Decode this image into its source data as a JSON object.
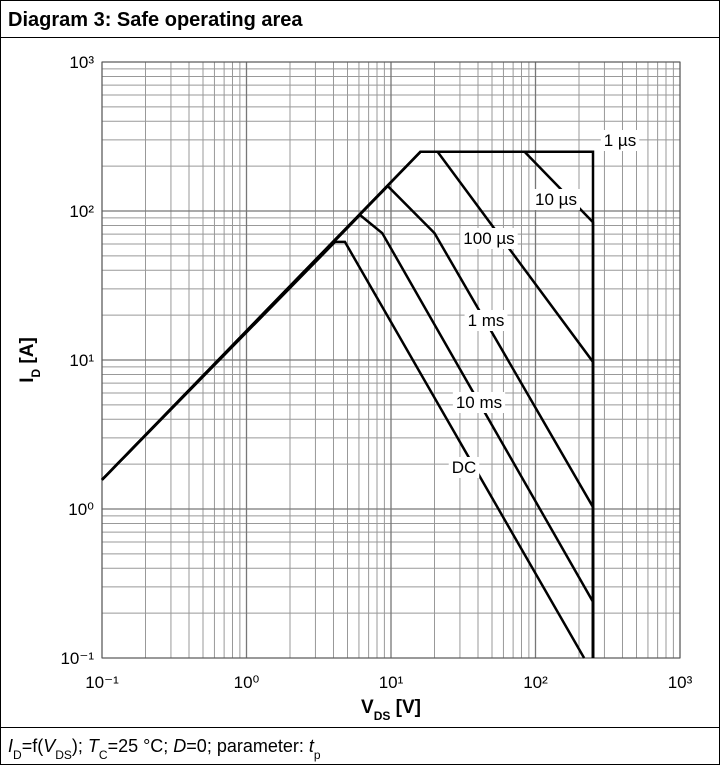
{
  "chart_data": {
    "type": "line",
    "title": "Diagram 3: Safe operating area",
    "xlabel": [
      "V",
      "DS",
      " [V]"
    ],
    "ylabel": [
      "I",
      "D",
      " [A]"
    ],
    "footer": [
      "I",
      "D",
      "=f(",
      "V",
      "DS",
      "); ",
      "T",
      "C",
      "=25 °C; ",
      "D",
      "=0; parameter: ",
      "t",
      "p"
    ],
    "xscale": "log",
    "yscale": "log",
    "grid": true,
    "minor_grid": true,
    "xlim": [
      0.1,
      1000
    ],
    "ylim": [
      0.1,
      1000
    ],
    "xticks": [
      {
        "value": 0.1,
        "label": "10⁻¹"
      },
      {
        "value": 1,
        "label": "10⁰"
      },
      {
        "value": 10,
        "label": "10¹"
      },
      {
        "value": 100,
        "label": "10²"
      },
      {
        "value": 1000,
        "label": "10³"
      }
    ],
    "yticks": [
      {
        "value": 0.1,
        "label": "10⁻¹"
      },
      {
        "value": 1,
        "label": "10⁰"
      },
      {
        "value": 10,
        "label": "10¹"
      },
      {
        "value": 100,
        "label": "10²"
      },
      {
        "value": 1000,
        "label": "10³"
      }
    ],
    "series": [
      {
        "name": "1 µs",
        "color": "#000000",
        "x": [
          0.1,
          16,
          250,
          250
        ],
        "values": [
          1.57,
          250,
          250,
          0.1
        ]
      },
      {
        "name": "10 µs",
        "color": "#000000",
        "x": [
          0.1,
          16,
          84,
          250,
          250
        ],
        "values": [
          1.57,
          250,
          250,
          84,
          0.1
        ]
      },
      {
        "name": "100 µs",
        "color": "#000000",
        "x": [
          0.1,
          16,
          21,
          250,
          250
        ],
        "values": [
          1.57,
          250,
          250,
          9.7,
          0.1
        ]
      },
      {
        "name": "1 ms",
        "color": "#000000",
        "x": [
          0.1,
          9.5,
          20,
          250,
          250
        ],
        "values": [
          1.57,
          147,
          71,
          1.03,
          0.1
        ]
      },
      {
        "name": "10 ms",
        "color": "#000000",
        "x": [
          0.1,
          6.1,
          8.7,
          250,
          250
        ],
        "values": [
          1.57,
          94,
          71,
          0.238,
          0.1
        ]
      },
      {
        "name": "DC",
        "color": "#000000",
        "x": [
          0.1,
          4.1,
          4.8,
          217
        ],
        "values": [
          1.57,
          62,
          62,
          0.1
        ]
      }
    ]
  }
}
